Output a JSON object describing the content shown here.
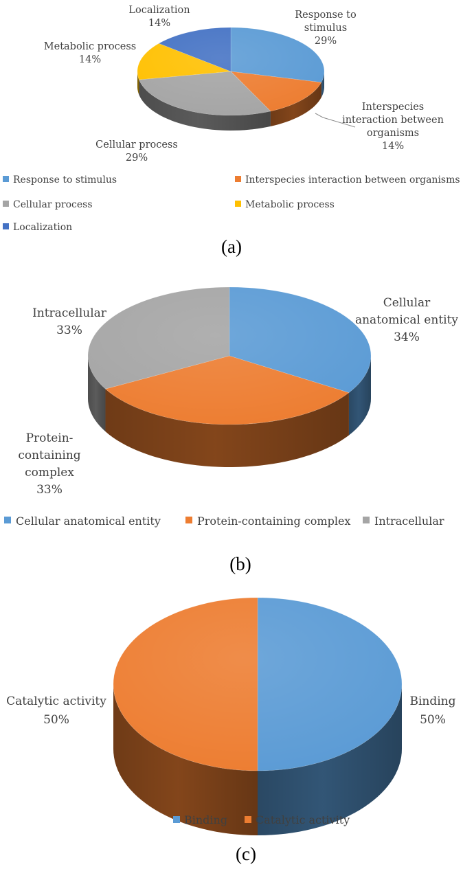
{
  "chart_data": [
    {
      "type": "pie",
      "caption": "(a)",
      "categories": [
        "Response to stimulus",
        "Interspecies interaction between organisms",
        "Cellular process",
        "Metabolic process",
        "Localization"
      ],
      "values": [
        29,
        14,
        29,
        14,
        14
      ],
      "value_labels": [
        "29%",
        "14%",
        "29%",
        "14%",
        "14%"
      ],
      "slice_labels": [
        [
          "Response to",
          "stimulus"
        ],
        [
          "Interspecies",
          "interaction between",
          "organisms"
        ],
        [
          "Cellular process"
        ],
        [
          "Metabolic process"
        ],
        [
          "Localization"
        ]
      ],
      "colors": [
        "#5B9BD5",
        "#ED7D31",
        "#A5A5A5",
        "#FFC000",
        "#4472C4"
      ],
      "legend": {
        "entries": [
          "Response to stimulus",
          "Interspecies interaction between organisms",
          "Cellular process",
          "Metabolic process",
          "Localization"
        ],
        "position": "bottom"
      },
      "style": "3d"
    },
    {
      "type": "pie",
      "caption": "(b)",
      "categories": [
        "Cellular anatomical entity",
        "Protein-containing complex",
        "Intracellular"
      ],
      "values": [
        34,
        33,
        33
      ],
      "value_labels": [
        "34%",
        "33%",
        "33%"
      ],
      "slice_labels": [
        [
          "Cellular",
          "anatomical entity"
        ],
        [
          "Protein-",
          "containing",
          "complex"
        ],
        [
          "Intracellular"
        ]
      ],
      "colors": [
        "#5B9BD5",
        "#ED7D31",
        "#A5A5A5"
      ],
      "legend": {
        "entries": [
          "Cellular anatomical entity",
          "Protein-containing complex",
          "Intracellular"
        ],
        "position": "bottom"
      },
      "style": "3d"
    },
    {
      "type": "pie",
      "caption": "(c)",
      "categories": [
        "Binding",
        "Catalytic activity"
      ],
      "values": [
        50,
        50
      ],
      "value_labels": [
        "50%",
        "50%"
      ],
      "slice_labels": [
        [
          "Binding"
        ],
        [
          "Catalytic activity"
        ]
      ],
      "colors": [
        "#5B9BD5",
        "#ED7D31"
      ],
      "legend": {
        "entries": [
          "Binding",
          "Catalytic activity"
        ],
        "position": "bottom"
      },
      "style": "3d"
    }
  ]
}
